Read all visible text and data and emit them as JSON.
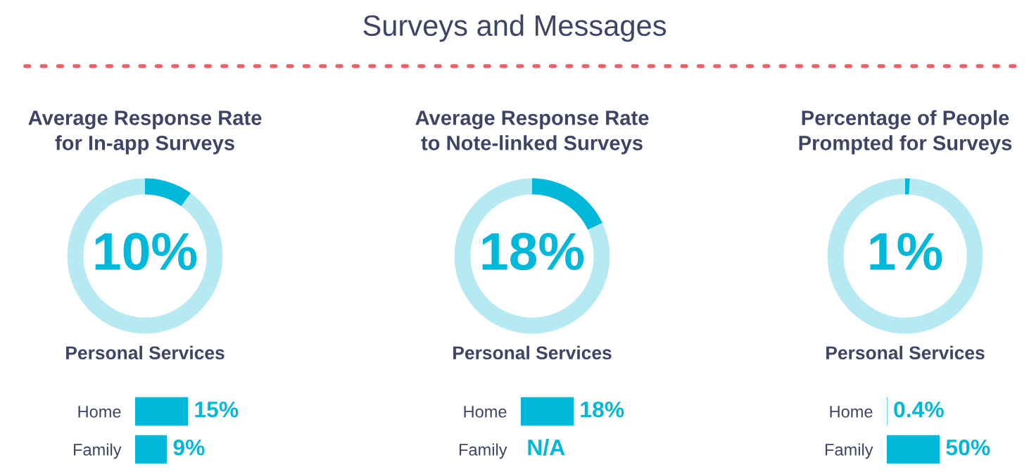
{
  "chart_data": [
    {
      "type": "other",
      "title": "Surveys and Messages"
    },
    {
      "type": "donut",
      "title": "Average Response Rate\nfor In-app Surveys",
      "categories": [
        null,
        null
      ],
      "values": [
        10,
        90
      ],
      "colors": [
        "#00b8d9",
        "#b5eaf3"
      ],
      "value_labels": [
        "10%",
        null
      ]
    },
    {
      "type": "bar",
      "orientation": "horizontal",
      "title": "Personal Services",
      "categories": [
        "Home",
        "Family"
      ],
      "values": [
        15,
        9
      ],
      "value_labels": [
        "15%",
        "9%"
      ],
      "color": "#00b8d9"
    },
    {
      "type": "donut",
      "title": "Average Response Rate\nto Note-linked Surveys",
      "categories": [
        null,
        null
      ],
      "values": [
        18,
        82
      ],
      "colors": [
        "#00b8d9",
        "#b5eaf3"
      ],
      "value_labels": [
        "18%",
        null
      ]
    },
    {
      "type": "bar",
      "orientation": "horizontal",
      "title": "Personal Services",
      "categories": [
        "Home",
        "Family"
      ],
      "values": [
        18,
        null
      ],
      "value_labels": [
        "18%",
        "N/A"
      ],
      "color": "#00b8d9"
    },
    {
      "type": "donut",
      "title": "Percentage of People\nPrompted for Surveys",
      "categories": [
        null,
        null
      ],
      "values": [
        1,
        99
      ],
      "colors": [
        "#00b8d9",
        "#b5eaf3"
      ],
      "value_labels": [
        "1%",
        null
      ]
    },
    {
      "type": "bar",
      "orientation": "horizontal",
      "title": "Personal Services",
      "categories": [
        "Home",
        "Family"
      ],
      "values": [
        0.4,
        50
      ],
      "value_labels": [
        "0.4%",
        "50%"
      ],
      "color": "#00b8d9"
    }
  ]
}
